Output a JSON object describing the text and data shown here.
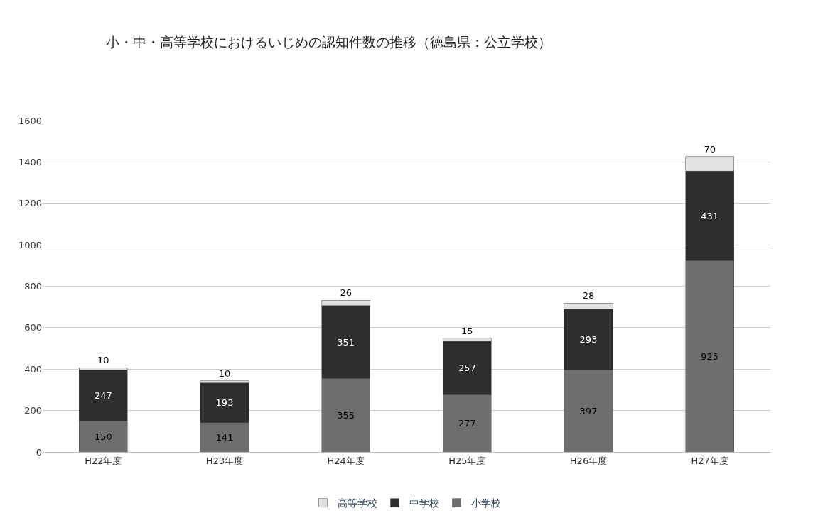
{
  "chart_data": {
    "type": "bar",
    "title": "小・中・高等学校におけるいじめの認知件数の推移（徳島県：公立学校）",
    "categories": [
      "H22年度",
      "H23年度",
      "H24年度",
      "H25年度",
      "H26年度",
      "H27年度"
    ],
    "series": [
      {
        "name": "小学校",
        "color": "#6e6e6e",
        "values": [
          150,
          141,
          355,
          277,
          397,
          925
        ]
      },
      {
        "name": "中学校",
        "color": "#2e2e2e",
        "values": [
          247,
          193,
          351,
          257,
          293,
          431
        ]
      },
      {
        "name": "高等学校",
        "color": "#e2e2e2",
        "values": [
          10,
          10,
          26,
          15,
          28,
          70
        ]
      }
    ],
    "stacked": true,
    "data_labels": true,
    "ylim": [
      0,
      1600
    ],
    "yticks": [
      0,
      200,
      400,
      600,
      800,
      1000,
      1200,
      1400,
      1600
    ],
    "grid": "y",
    "legend": "bottom"
  }
}
